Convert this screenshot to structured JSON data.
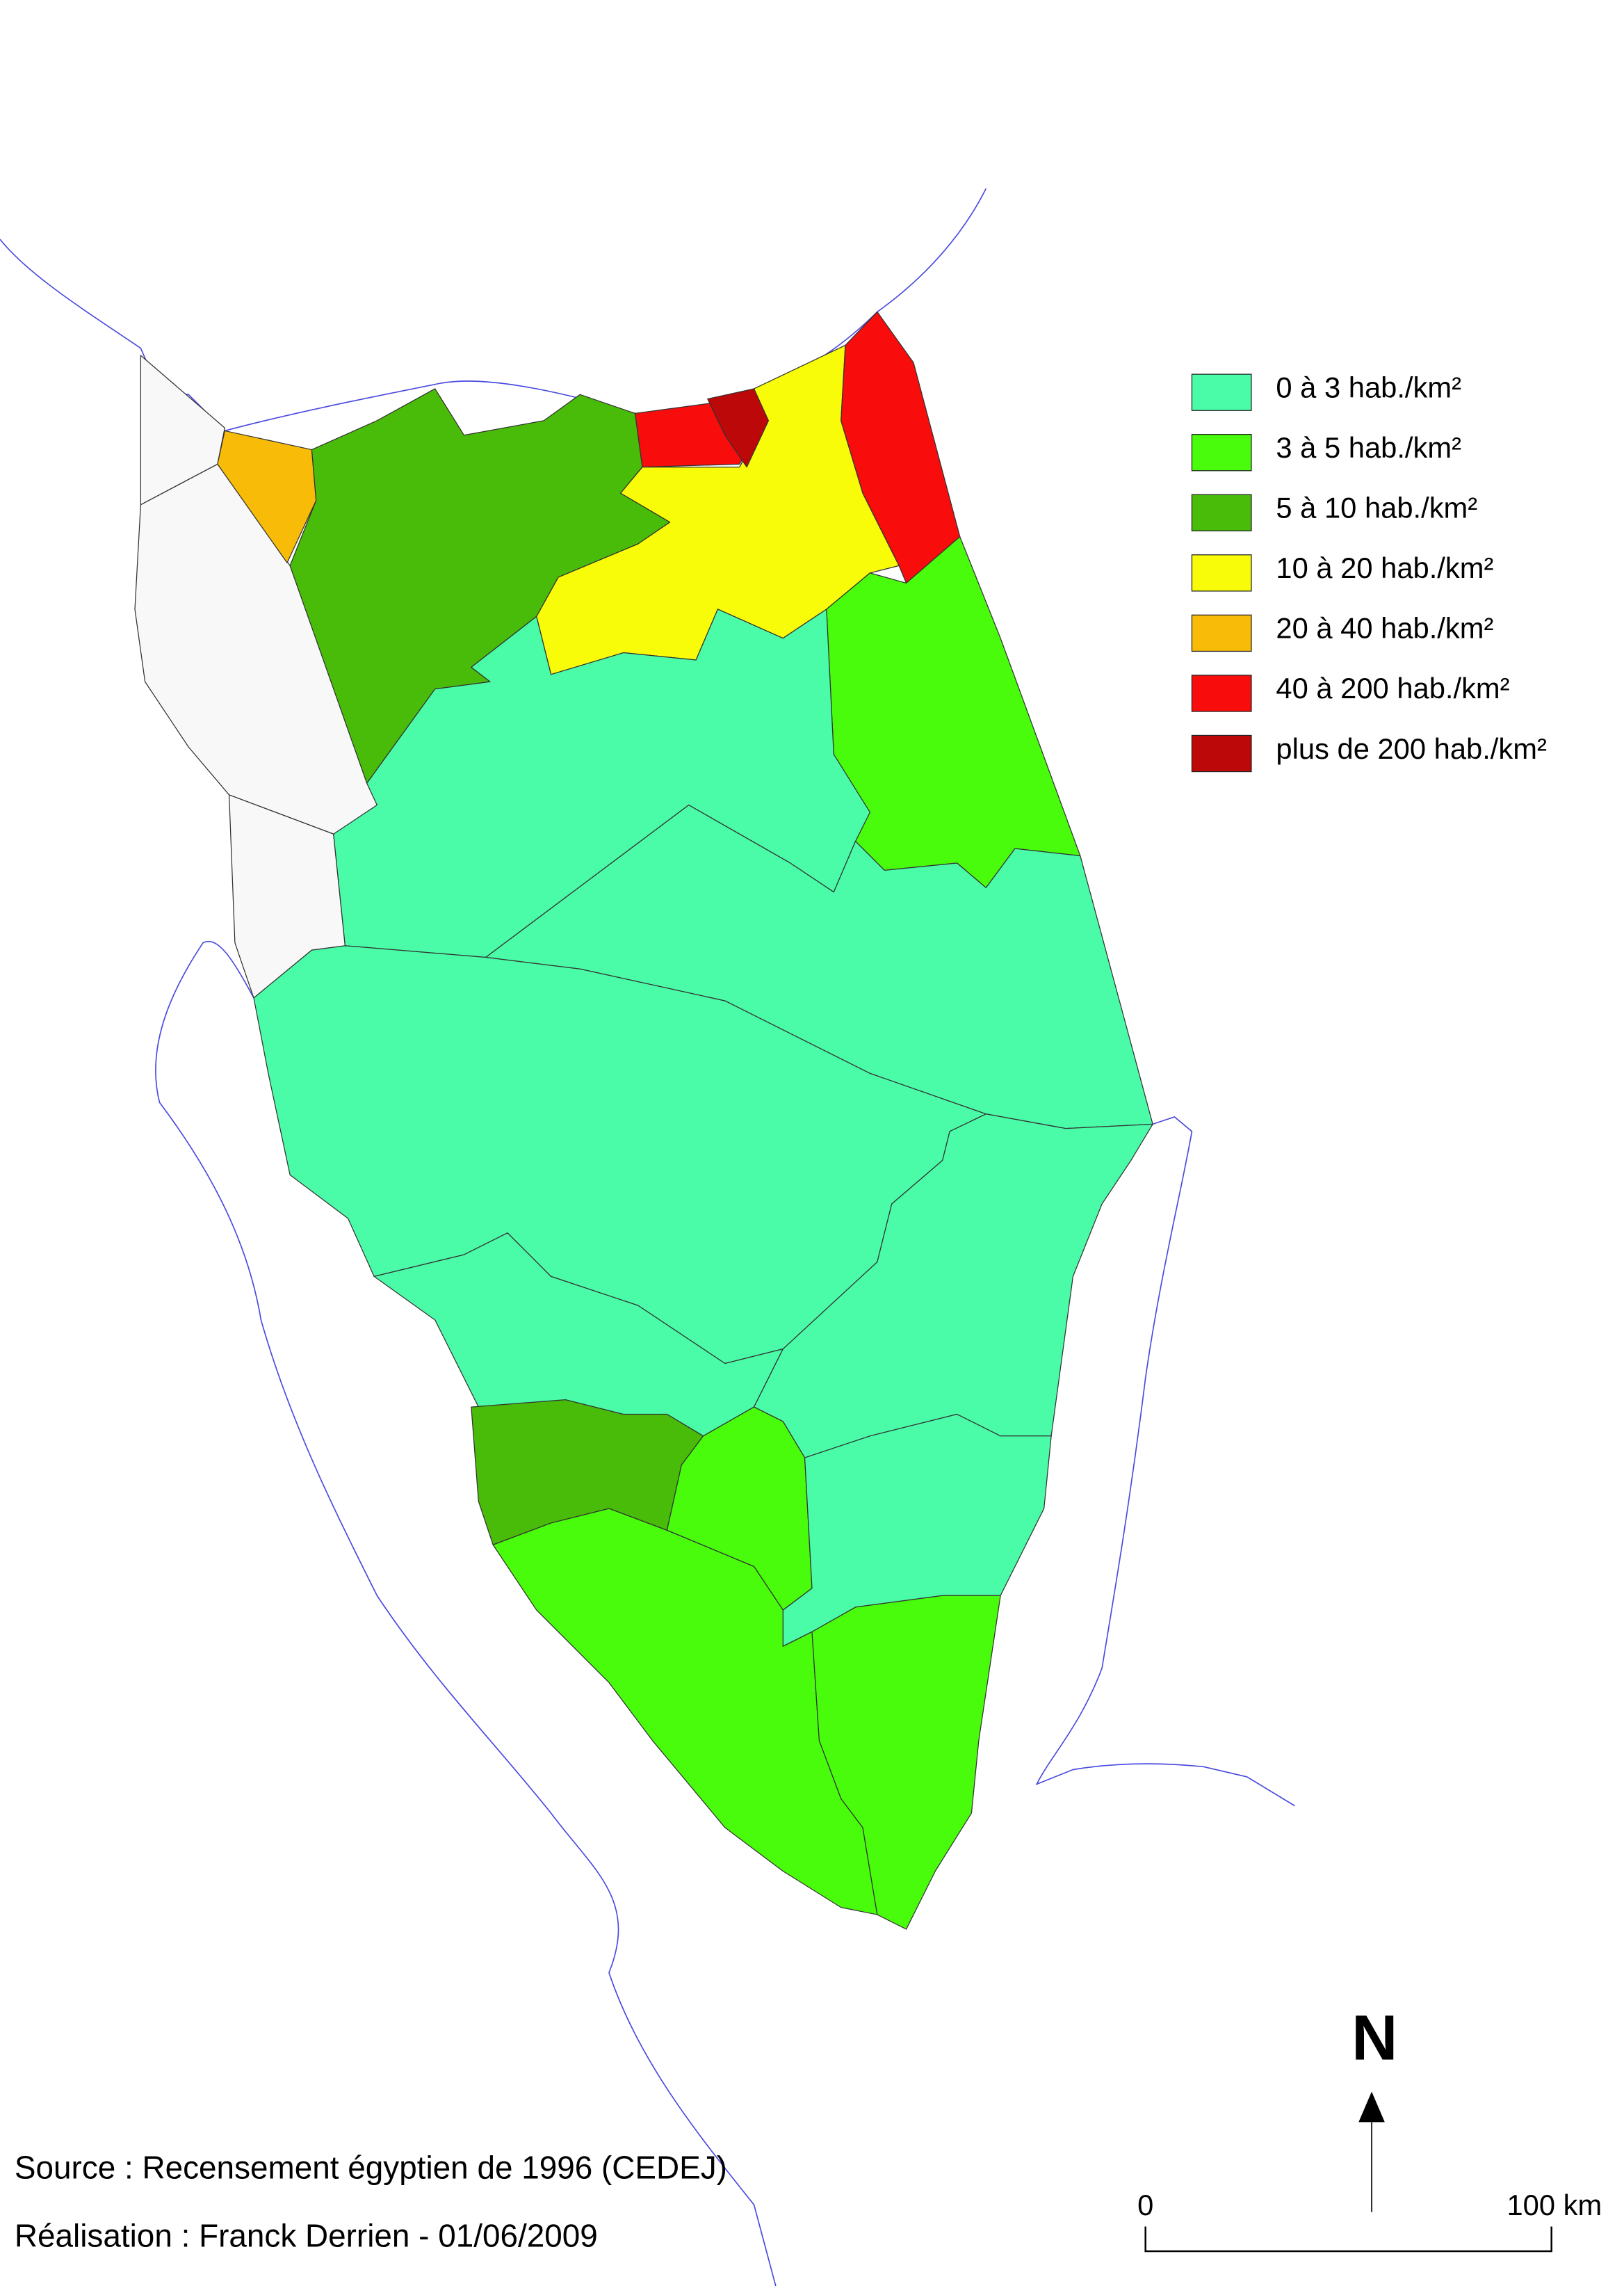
{
  "map": {
    "legend": [
      {
        "label": "0 à 3 hab./km²",
        "color": "#4afca8"
      },
      {
        "label": "3 à 5 hab./km²",
        "color": "#48fc0c"
      },
      {
        "label": "5 à 10 hab./km²",
        "color": "#48bc08"
      },
      {
        "label": "10 à 20 hab./km²",
        "color": "#f8fc08"
      },
      {
        "label": "20 à 40 hab./km²",
        "color": "#f8bc08"
      },
      {
        "label": "40 à 200 hab./km²",
        "color": "#f80c0c"
      },
      {
        "label": "plus de 200 hab./km²",
        "color": "#bc0808"
      }
    ],
    "no_data_color": "#f8f8f8",
    "coast_color": "#4a4ae0",
    "north_label": "N",
    "scale": {
      "start": "0",
      "end": "100 km"
    },
    "source": "Source : Recensement égyptien de 1996 (CEDEJ)",
    "credit": "Réalisation : Franck Derrien - 01/06/2009"
  }
}
